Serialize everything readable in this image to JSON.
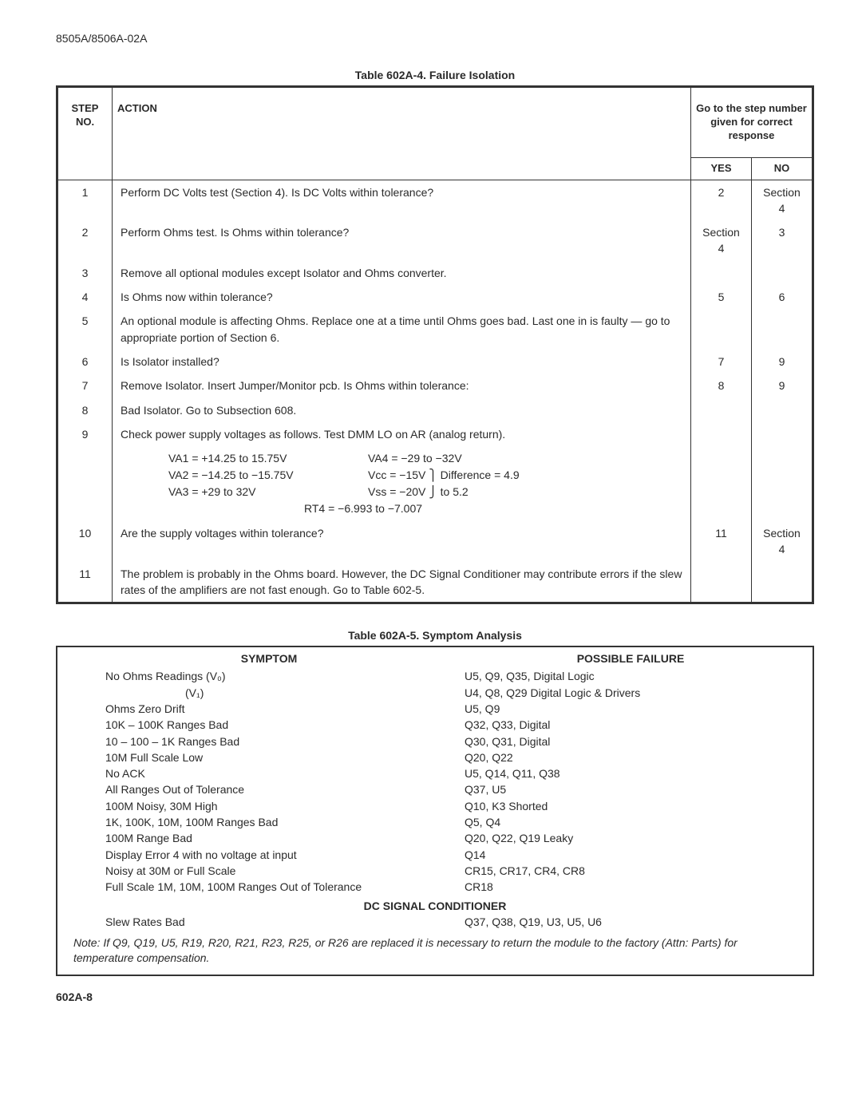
{
  "document_id": "8505A/8506A-02A",
  "page_footer": "602A-8",
  "table1": {
    "title": "Table 602A-4. Failure Isolation",
    "head": {
      "step": "STEP NO.",
      "action": "ACTION",
      "goto": "Go to the step number given for correct response",
      "yes": "YES",
      "no": "NO"
    },
    "rows": [
      {
        "n": "1",
        "action": "Perform DC Volts test (Section 4). Is DC Volts within tolerance?",
        "yes": "2",
        "no": "Section 4"
      },
      {
        "n": "2",
        "action": "Perform Ohms test. Is Ohms within tolerance?",
        "yes": "Section 4",
        "no": "3"
      },
      {
        "n": "3",
        "action": "Remove all optional modules except Isolator and Ohms converter.",
        "yes": "",
        "no": ""
      },
      {
        "n": "4",
        "action": "Is Ohms now within tolerance?",
        "yes": "5",
        "no": "6"
      },
      {
        "n": "5",
        "action": "An optional module is affecting Ohms. Replace one at a time until Ohms goes bad. Last one in is faulty — go to appropriate portion of Section 6.",
        "yes": "",
        "no": ""
      },
      {
        "n": "6",
        "action": "Is Isolator installed?",
        "yes": "7",
        "no": "9"
      },
      {
        "n": "7",
        "action": "Remove Isolator. Insert Jumper/Monitor pcb. Is Ohms within tolerance:",
        "yes": "8",
        "no": "9"
      },
      {
        "n": "8",
        "action": "Bad Isolator. Go to Subsection 608.",
        "yes": "",
        "no": ""
      },
      {
        "n": "9",
        "action": "Check power supply voltages as follows. Test DMM LO on AR (analog return).",
        "yes": "",
        "no": ""
      },
      {
        "n": "10",
        "action": "Are the supply voltages within tolerance?",
        "yes": "11",
        "no": "Section 4"
      },
      {
        "n": "11",
        "action": "The problem is probably in the Ohms board. However, the DC Signal Conditioner may contribute errors if the slew rates of the amplifiers are not fast enough. Go to Table 602-5.",
        "yes": "",
        "no": ""
      }
    ],
    "voltages": {
      "left": [
        "VA1 = +14.25 to 15.75V",
        "VA2 = −14.25 to −15.75V",
        "VA3 = +29 to 32V"
      ],
      "right": [
        "VA4 = −29 to −32V",
        "Vcc = −15V ⎫ Difference = 4.9",
        "Vss = −20V ⎭ to 5.2"
      ],
      "rt4": "RT4 = −6.993 to −7.007"
    }
  },
  "table2": {
    "title": "Table 602A-5. Symptom Analysis",
    "head_symptom": "SYMPTOM",
    "head_failure": "POSSIBLE FAILURE",
    "rows": [
      {
        "s": "No Ohms Readings (V₀)",
        "f": "U5, Q9, Q35, Digital Logic",
        "indent": false
      },
      {
        "s": "(V₁)",
        "f": "U4, Q8, Q29 Digital Logic & Drivers",
        "indent": true
      },
      {
        "s": "Ohms Zero Drift",
        "f": "U5, Q9",
        "indent": false
      },
      {
        "s": "10K – 100K Ranges Bad",
        "f": "Q32, Q33, Digital",
        "indent": false
      },
      {
        "s": "10 – 100 – 1K Ranges Bad",
        "f": "Q30, Q31, Digital",
        "indent": false
      },
      {
        "s": "10M Full Scale Low",
        "f": "Q20, Q22",
        "indent": false
      },
      {
        "s": "No ACK",
        "f": "U5, Q14, Q11, Q38",
        "indent": false
      },
      {
        "s": "All Ranges Out of Tolerance",
        "f": "Q37, U5",
        "indent": false
      },
      {
        "s": "100M Noisy, 30M High",
        "f": "Q10, K3 Shorted",
        "indent": false
      },
      {
        "s": "1K, 100K, 10M, 100M Ranges Bad",
        "f": "Q5, Q4",
        "indent": false
      },
      {
        "s": "100M Range Bad",
        "f": "Q20, Q22, Q19 Leaky",
        "indent": false
      },
      {
        "s": "Display Error 4 with no voltage at input",
        "f": "Q14",
        "indent": false
      },
      {
        "s": "Noisy at 30M or Full Scale",
        "f": "CR15, CR17, CR4, CR8",
        "indent": false
      },
      {
        "s": "Full Scale 1M, 10M, 100M Ranges Out of Tolerance",
        "f": "CR18",
        "indent": false
      }
    ],
    "sub_title": "DC SIGNAL CONDITIONER",
    "sub_rows": [
      {
        "s": "Slew Rates Bad",
        "f": "Q37, Q38, Q19, U3, U5, U6"
      }
    ],
    "note": "Note: If Q9, Q19, U5, R19, R20, R21, R23, R25, or R26 are replaced it is necessary to return the module to the factory (Attn: Parts) for temperature compensation."
  }
}
